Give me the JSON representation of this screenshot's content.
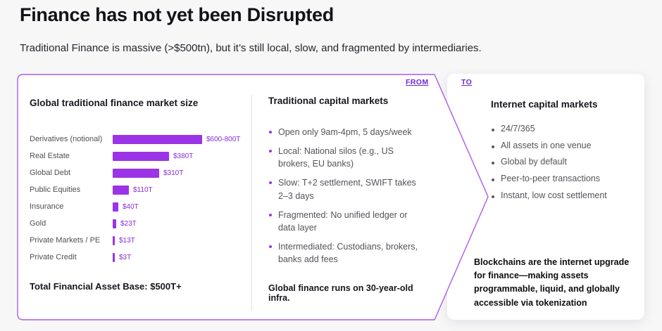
{
  "header": {
    "title": "Finance has not yet been Disrupted",
    "subtitle": "Traditional Finance is massive (>$500tn), but it’s still local, slow, and fragmented by intermediaries."
  },
  "labels": {
    "from": "FROM",
    "to": "TO"
  },
  "colors": {
    "accent": "#9b33e6",
    "accent_dark": "#8a2bd8",
    "panel_border": "#ab5ce8",
    "link": "#6d28d9"
  },
  "chart_data": {
    "type": "bar",
    "orientation": "horizontal",
    "title": "Global traditional finance market size",
    "categories": [
      "Derivatives (notional)",
      "Real Estate",
      "Global Debt",
      "Public Equities",
      "Insurance",
      "Gold",
      "Private Markets / PE",
      "Private Credit"
    ],
    "values": [
      700,
      380,
      310,
      110,
      40,
      23,
      13,
      3
    ],
    "value_labels": [
      "$600-800T",
      "$380T",
      "$310T",
      "$110T",
      "$40T",
      "$23T",
      "$13T",
      "$3T"
    ],
    "unit": "trillions USD",
    "xlim": [
      0,
      800
    ],
    "footer": "Total Financial Asset Base: $500T+"
  },
  "traditional": {
    "title": "Traditional capital markets",
    "bullets": [
      "Open only 9am-4pm, 5 days/week",
      "Local: National silos (e.g., US brokers, EU banks)",
      "Slow: T+2 settlement, SWIFT takes 2–3 days",
      "Fragmented: No unified ledger or data layer",
      "Intermediated: Custodians, brokers, banks add fees"
    ],
    "footer": "Global finance runs on 30-year-old infra."
  },
  "internet": {
    "title": "Internet capital markets",
    "bullets": [
      "24/7/365",
      "All assets in one venue",
      "Global by default",
      "Peer-to-peer transactions",
      "Instant, low cost settlement"
    ],
    "footer": "Blockchains are the internet upgrade for finance—making assets programmable, liquid, and globally accessible via tokenization"
  }
}
